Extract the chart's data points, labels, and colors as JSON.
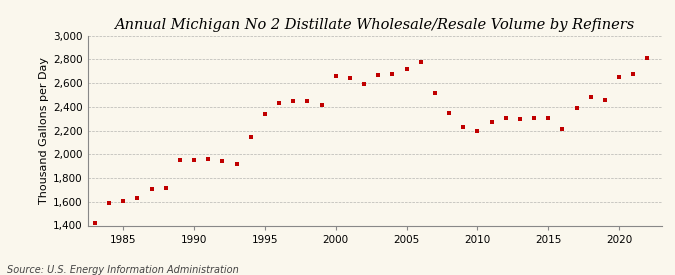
{
  "title": "Annual Michigan No 2 Distillate Wholesale/Resale Volume by Refiners",
  "ylabel": "Thousand Gallons per Day",
  "source": "Source: U.S. Energy Information Administration",
  "background_color": "#faf7ed",
  "marker_color": "#c00000",
  "years": [
    1983,
    1984,
    1985,
    1986,
    1987,
    1988,
    1989,
    1990,
    1991,
    1992,
    1993,
    1994,
    1995,
    1996,
    1997,
    1998,
    1999,
    2000,
    2001,
    2002,
    2003,
    2004,
    2005,
    2006,
    2007,
    2008,
    2009,
    2010,
    2011,
    2012,
    2013,
    2014,
    2015,
    2016,
    2017,
    2018,
    2019,
    2020,
    2021,
    2022
  ],
  "values": [
    1420,
    1590,
    1610,
    1630,
    1710,
    1720,
    1950,
    1950,
    1960,
    1940,
    1920,
    2150,
    2340,
    2430,
    2450,
    2450,
    2420,
    2660,
    2640,
    2590,
    2670,
    2680,
    2720,
    2780,
    2520,
    2350,
    2230,
    2200,
    2270,
    2310,
    2300,
    2310,
    2310,
    2210,
    2390,
    2480,
    2460,
    2650,
    2680,
    2810
  ],
  "ylim": [
    1400,
    3000
  ],
  "yticks": [
    1400,
    1600,
    1800,
    2000,
    2200,
    2400,
    2600,
    2800,
    3000
  ],
  "xlim": [
    1982.5,
    2023
  ],
  "xticks": [
    1985,
    1990,
    1995,
    2000,
    2005,
    2010,
    2015,
    2020
  ],
  "grid_color": "#999999",
  "title_fontsize": 10.5,
  "label_fontsize": 8,
  "tick_fontsize": 7.5,
  "source_fontsize": 7
}
